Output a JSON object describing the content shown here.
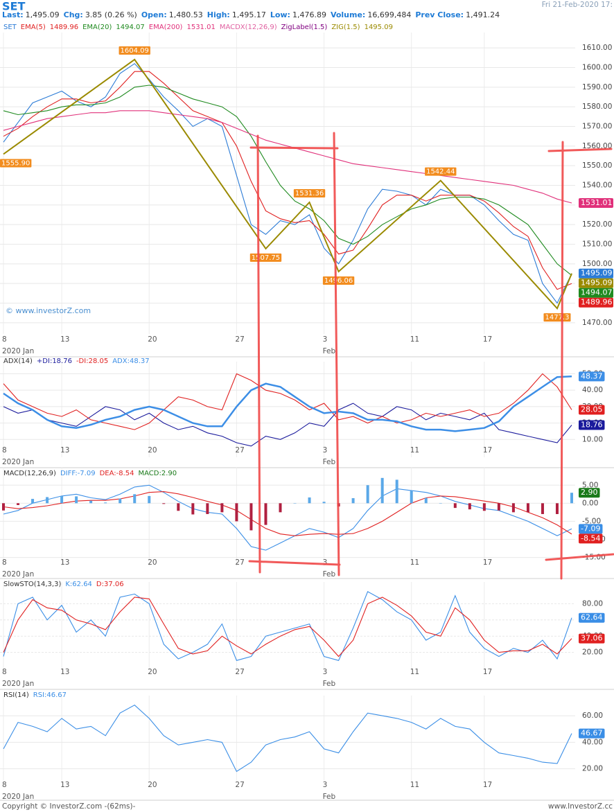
{
  "header": {
    "symbol": "SET",
    "datetime": "Fri 21-Feb-2020 17:",
    "fields": [
      {
        "label": "Last:",
        "value": "1,495.09"
      },
      {
        "label": "Chg:",
        "value": "3.85 (0.26 %)"
      },
      {
        "label": "Open:",
        "value": "1,480.53"
      },
      {
        "label": "High:",
        "value": "1,495.17"
      },
      {
        "label": "Low:",
        "value": "1,476.89"
      },
      {
        "label": "Volume:",
        "value": "16,699,484"
      },
      {
        "label": "Prev Close:",
        "value": "1,491.24"
      }
    ]
  },
  "footer": {
    "copyright": "Copyright © InvestorZ.com -(62ms)-",
    "site": "www.InvestorZ.cc"
  },
  "chart_data": [
    {
      "type": "line",
      "watermark": "© www.investorZ.com",
      "categories": [
        "8",
        null,
        null,
        null,
        "13",
        null,
        null,
        null,
        null,
        null,
        "20",
        null,
        null,
        null,
        null,
        null,
        "27",
        null,
        null,
        null,
        null,
        null,
        "3",
        null,
        null,
        null,
        null,
        null,
        "11",
        null,
        null,
        null,
        null,
        "17",
        null,
        null,
        null,
        null,
        null,
        null
      ],
      "x_month_labels": [
        "2020 Jan",
        "Feb"
      ],
      "ylim": [
        1465,
        1615
      ],
      "yticks": [
        {
          "value": 1470,
          "label": "1470.00"
        },
        {
          "value": 1480,
          "label": "1480.00"
        },
        {
          "value": 1490,
          "label": "1490.00"
        },
        {
          "value": 1500,
          "label": "1500.00"
        },
        {
          "value": 1510,
          "label": "1510.00"
        },
        {
          "value": 1520,
          "label": "1520.00"
        },
        {
          "value": 1530,
          "label": "1530.00"
        },
        {
          "value": 1540,
          "label": "1540.00"
        },
        {
          "value": 1550,
          "label": "1550.00"
        },
        {
          "value": 1560,
          "label": "1560.00"
        },
        {
          "value": 1570,
          "label": "1570.00"
        },
        {
          "value": 1580,
          "label": "1580.00"
        },
        {
          "value": 1590,
          "label": "1590.00"
        },
        {
          "value": 1600,
          "label": "1600.00"
        },
        {
          "value": 1610,
          "label": "1610.00"
        }
      ],
      "grid": true,
      "series": [
        {
          "name": "SET",
          "color": "#2b7bd6",
          "values": [
            1562,
            1572,
            1582,
            1585,
            1588,
            1583,
            1580,
            1585,
            1597,
            1602,
            1594,
            1585,
            1578,
            1570,
            1574,
            1570,
            1545,
            1520,
            1515,
            1522,
            1520,
            1525,
            1508,
            1500,
            1512,
            1528,
            1538,
            1537,
            1535,
            1530,
            1538,
            1535,
            1535,
            1530,
            1522,
            1515,
            1512,
            1490,
            1480,
            1495.09
          ]
        },
        {
          "name": "EMA(5)",
          "color": "#e02020",
          "values": [
            1565,
            1569,
            1575,
            1580,
            1584,
            1584,
            1582,
            1583,
            1590,
            1598,
            1598,
            1592,
            1585,
            1578,
            1575,
            1572,
            1560,
            1542,
            1527,
            1523,
            1521,
            1522,
            1515,
            1505,
            1507,
            1518,
            1530,
            1535,
            1535,
            1532,
            1535,
            1535,
            1535,
            1532,
            1526,
            1519,
            1514,
            1498,
            1487,
            1489.96
          ]
        },
        {
          "name": "EMA(20)",
          "color": "#1f8a1f",
          "values": [
            1578,
            1576,
            1577,
            1578,
            1580,
            1581,
            1581,
            1582,
            1585,
            1590,
            1591,
            1590,
            1587,
            1584,
            1582,
            1580,
            1575,
            1565,
            1552,
            1540,
            1532,
            1528,
            1522,
            1513,
            1510,
            1514,
            1520,
            1524,
            1528,
            1530,
            1533,
            1534,
            1534,
            1533,
            1530,
            1525,
            1520,
            1510,
            1500,
            1494.07
          ]
        },
        {
          "name": "EMA(200)",
          "color": "#e0307a",
          "values": [
            1568,
            1570,
            1572,
            1574,
            1575,
            1576,
            1577,
            1577,
            1578,
            1578,
            1578,
            1577,
            1576,
            1575,
            1574,
            1572,
            1569,
            1566,
            1563,
            1561,
            1559,
            1557,
            1555,
            1553,
            1551,
            1550,
            1549,
            1548,
            1547,
            1546,
            1545,
            1544,
            1543,
            1542,
            1541,
            1540,
            1538,
            1536,
            1533,
            1531.01
          ]
        }
      ],
      "other_indicators": [
        {
          "name": "MACDX(12,26,9)",
          "color": "#e060a0"
        },
        {
          "name": "ZigLabel(1.5)",
          "color": "#800080"
        }
      ],
      "zigzag": {
        "name": "ZIG(1.5)",
        "color": "#9a8a00",
        "label_color": "#f28c1e",
        "x": [
          0,
          9,
          18,
          21,
          23,
          30,
          38,
          39
        ],
        "values": [
          1555.9,
          1604.09,
          1507.75,
          1531.36,
          1496.06,
          1542.44,
          1477.3,
          1495.09
        ],
        "value_labels": [
          "1555.90",
          "1604.09",
          "1507.75",
          "1531.36",
          "1496.06",
          "1542.44",
          "1477.3",
          null
        ]
      }
    },
    {
      "type": "line",
      "title": "ADX(14)",
      "categories": [
        "8",
        null,
        null,
        null,
        "13",
        null,
        null,
        null,
        null,
        null,
        "20",
        null,
        null,
        null,
        null,
        null,
        "27",
        null,
        null,
        null,
        null,
        null,
        "3",
        null,
        null,
        null,
        null,
        null,
        "11",
        null,
        null,
        null,
        null,
        "17",
        null,
        null,
        null,
        null,
        null,
        null
      ],
      "x_month_labels": [
        "2020 Jan",
        "Feb"
      ],
      "ylim": [
        0,
        54
      ],
      "yticks": [
        {
          "value": 10,
          "label": "10.00"
        },
        {
          "value": 20,
          "label": "20.00"
        },
        {
          "value": 30,
          "label": "30.00"
        },
        {
          "value": 40,
          "label": "40.00"
        },
        {
          "value": 50,
          "label": "50.00"
        }
      ],
      "grid": true,
      "series": [
        {
          "name": "+DI:18.76",
          "color": "#1a1a9c",
          "values": [
            30,
            26,
            28,
            22,
            20,
            18,
            24,
            30,
            28,
            22,
            26,
            20,
            16,
            18,
            14,
            12,
            8,
            6,
            12,
            10,
            14,
            20,
            18,
            28,
            32,
            26,
            24,
            30,
            28,
            22,
            26,
            24,
            22,
            26,
            16,
            14,
            12,
            10,
            8,
            18.76
          ]
        },
        {
          "name": "-DI:28.05",
          "color": "#e02020",
          "values": [
            44,
            34,
            30,
            26,
            24,
            28,
            22,
            20,
            18,
            16,
            20,
            28,
            36,
            34,
            30,
            28,
            50,
            46,
            40,
            38,
            34,
            28,
            32,
            22,
            24,
            20,
            24,
            20,
            22,
            26,
            24,
            26,
            28,
            24,
            26,
            32,
            40,
            50,
            42,
            28.05
          ]
        },
        {
          "name": "ADX:48.37",
          "color": "#3c8ee6",
          "width": 2.5,
          "values": [
            38,
            32,
            28,
            22,
            18,
            17,
            19,
            22,
            24,
            28,
            30,
            28,
            24,
            20,
            18,
            18,
            30,
            40,
            44,
            42,
            36,
            30,
            26,
            27,
            26,
            22,
            22,
            21,
            18,
            16,
            16,
            15,
            16,
            17,
            21,
            30,
            36,
            42,
            48,
            48.37
          ]
        }
      ]
    },
    {
      "type": "line",
      "title": "MACD(12,26,9)",
      "categories": [
        "8",
        null,
        null,
        null,
        "13",
        null,
        null,
        null,
        null,
        null,
        "20",
        null,
        null,
        null,
        null,
        null,
        "27",
        null,
        null,
        null,
        null,
        null,
        "3",
        null,
        null,
        null,
        null,
        null,
        "11",
        null,
        null,
        null,
        null,
        "17",
        null,
        null,
        null,
        null,
        null,
        null
      ],
      "x_month_labels": [
        "2020 Jan",
        "Feb"
      ],
      "ylim": [
        -17,
        8.5
      ],
      "yticks": [
        {
          "value": 5,
          "label": "5.00"
        },
        {
          "value": 0,
          "label": "0.00"
        },
        {
          "value": -5,
          "label": "-5.00"
        },
        {
          "value": -10,
          "label": "-10.00"
        },
        {
          "value": -15,
          "label": "-15.00"
        }
      ],
      "grid": true,
      "series": [
        {
          "name": "DIFF:-7.09",
          "color": "#3a8ee6",
          "values": [
            -3,
            -2,
            0,
            1,
            2,
            2.5,
            1.5,
            1,
            2.5,
            4.5,
            5,
            3,
            0.5,
            -1.5,
            -2.5,
            -3,
            -7,
            -12,
            -13,
            -11,
            -9,
            -7,
            -8,
            -9.5,
            -7,
            -2,
            2,
            4,
            3.5,
            3,
            2,
            0.5,
            -0.5,
            -1.5,
            -2,
            -3.5,
            -5,
            -7,
            -9,
            -7.09
          ]
        },
        {
          "name": "DEA:-8.54",
          "color": "#e02020",
          "values": [
            -1,
            -1.5,
            -1.2,
            -0.7,
            0,
            0.6,
            0.8,
            0.8,
            1.2,
            2,
            3,
            3.2,
            2.6,
            1.6,
            0.5,
            -0.5,
            -2,
            -4.5,
            -7,
            -8.5,
            -9,
            -8.6,
            -8.4,
            -8.6,
            -8.4,
            -7,
            -5,
            -2.5,
            0,
            1.5,
            2,
            1.8,
            1.2,
            0.6,
            0,
            -1,
            -2.5,
            -4,
            -6,
            -8.54
          ]
        },
        {
          "name": "MACD:2.90",
          "type": "bar",
          "color": "#1a7a1a",
          "pos_color": "#5aa8e8",
          "neg_color": "#b02040",
          "values": [
            -2,
            -0.5,
            1.2,
            1.7,
            2,
            1.9,
            0.7,
            0.2,
            1.3,
            2.5,
            2,
            -0.2,
            -2.1,
            -3.1,
            -3,
            -2.5,
            -5,
            -7.5,
            -6,
            -2.5,
            0,
            1.6,
            0.4,
            -0.9,
            1.4,
            5,
            7,
            6.5,
            3.5,
            1.5,
            0,
            -1.3,
            -1.7,
            -2.1,
            -2,
            -2.5,
            -2.5,
            -3,
            -3,
            2.9
          ],
          "value_labels": [
            null,
            null,
            null,
            null,
            null,
            null,
            null,
            null,
            null,
            null,
            null,
            null,
            null,
            null,
            null,
            null,
            null,
            null,
            null,
            null,
            null,
            null,
            null,
            null,
            null,
            null,
            null,
            null,
            null,
            null,
            null,
            null,
            null,
            null,
            null,
            null,
            null,
            null,
            null,
            "2.90"
          ]
        }
      ]
    },
    {
      "type": "line",
      "title": "SlowSTO(14,3,3)",
      "categories": [
        "8",
        null,
        null,
        null,
        "13",
        null,
        null,
        null,
        null,
        null,
        "20",
        null,
        null,
        null,
        null,
        null,
        "27",
        null,
        null,
        null,
        null,
        null,
        "3",
        null,
        null,
        null,
        null,
        null,
        "11",
        null,
        null,
        null,
        null,
        "17",
        null,
        null,
        null,
        null,
        null,
        null
      ],
      "x_month_labels": [
        "2020 Jan",
        "Feb"
      ],
      "ylim": [
        0,
        100
      ],
      "yticks": [
        {
          "value": 20,
          "label": "20.00"
        },
        {
          "value": 40,
          "label": "40.00"
        },
        {
          "value": 60,
          "label": "60.00"
        },
        {
          "value": 80,
          "label": "80.00"
        }
      ],
      "grid": true,
      "series": [
        {
          "name": "K:62.64",
          "color": "#3a8ee6",
          "values": [
            15,
            80,
            88,
            60,
            78,
            45,
            60,
            40,
            88,
            92,
            80,
            30,
            12,
            20,
            30,
            55,
            10,
            15,
            40,
            45,
            50,
            55,
            15,
            10,
            50,
            95,
            85,
            70,
            60,
            35,
            45,
            90,
            45,
            25,
            15,
            25,
            20,
            35,
            12,
            62.64
          ]
        },
        {
          "name": "D:37.06",
          "color": "#e02020",
          "values": [
            20,
            60,
            85,
            75,
            72,
            60,
            55,
            48,
            70,
            88,
            86,
            55,
            25,
            18,
            22,
            40,
            28,
            18,
            30,
            40,
            48,
            52,
            35,
            15,
            35,
            80,
            88,
            78,
            65,
            45,
            40,
            75,
            60,
            35,
            20,
            22,
            22,
            30,
            18,
            37.06
          ]
        }
      ]
    },
    {
      "type": "line",
      "title": "RSI(14)",
      "categories": [
        "8",
        null,
        null,
        null,
        "13",
        null,
        null,
        null,
        null,
        null,
        "20",
        null,
        null,
        null,
        null,
        null,
        "27",
        null,
        null,
        null,
        null,
        null,
        "3",
        null,
        null,
        null,
        null,
        null,
        "11",
        null,
        null,
        null,
        null,
        "17",
        null,
        null,
        null,
        null,
        null,
        null
      ],
      "x_month_labels": [
        "2020 Jan",
        "Feb"
      ],
      "ylim": [
        12,
        71
      ],
      "yticks": [
        {
          "value": 20,
          "label": "20.00"
        },
        {
          "value": 40,
          "label": "40.00"
        },
        {
          "value": 60,
          "label": "60.00"
        }
      ],
      "grid": true,
      "series": [
        {
          "name": "RSI:46.67",
          "color": "#3a8ee6",
          "values": [
            35,
            55,
            52,
            48,
            58,
            50,
            52,
            45,
            62,
            68,
            58,
            45,
            38,
            40,
            42,
            40,
            18,
            25,
            38,
            42,
            44,
            48,
            35,
            32,
            48,
            62,
            60,
            58,
            55,
            50,
            58,
            52,
            50,
            40,
            32,
            30,
            28,
            25,
            24,
            46.67
          ]
        }
      ]
    }
  ]
}
